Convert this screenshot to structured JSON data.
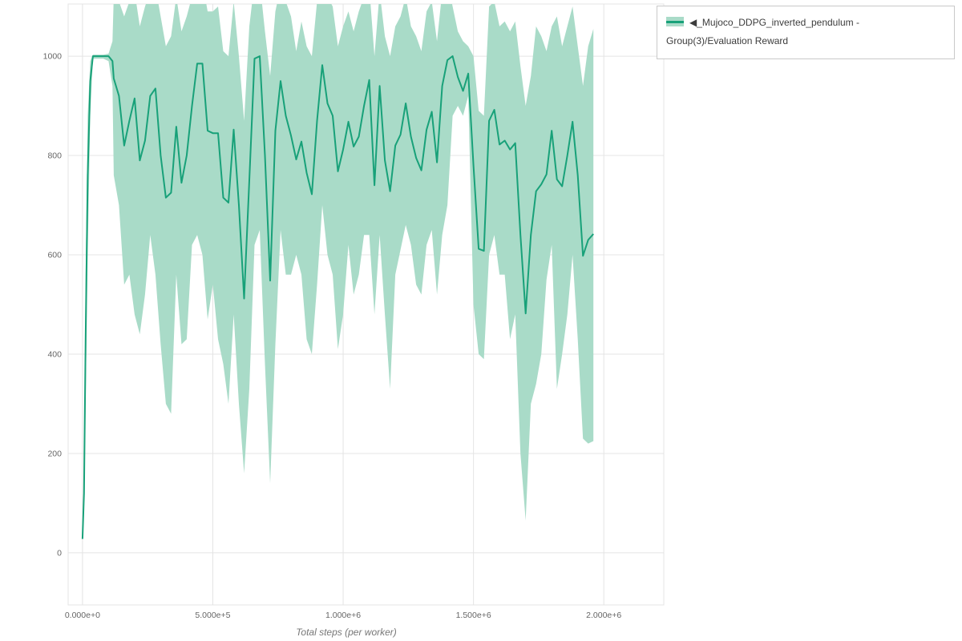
{
  "legend": {
    "collapse_icon": "◀",
    "label": "_Mujoco_DDPG_inverted_pendulum - Group(3)/Evaluation Reward"
  },
  "axes": {
    "x_title": "Total steps (per worker)"
  },
  "colors": {
    "line": "#18a179",
    "band": "#a9dbc8",
    "grid": "#e4e4e4",
    "tick_text": "#666666",
    "axis_title": "#777777",
    "legend_border": "#c9c9c9",
    "background": "#ffffff"
  },
  "chart_data": {
    "type": "line",
    "title": "",
    "xlabel": "Total steps (per worker)",
    "ylabel": "",
    "grid": true,
    "legend_position": "top-right",
    "xlim": [
      -55000,
      2230000
    ],
    "ylim": [
      -105,
      1105
    ],
    "x_tick_values": [
      0,
      500000,
      1000000,
      1500000,
      2000000
    ],
    "x_tick_labels": [
      "0.000e+0",
      "5.000e+5",
      "1.000e+6",
      "1.500e+6",
      "2.000e+6"
    ],
    "y_tick_values": [
      0,
      200,
      400,
      600,
      800,
      1000
    ],
    "y_tick_labels": [
      "0",
      "200",
      "400",
      "600",
      "800",
      "1000"
    ],
    "series": [
      {
        "name": "◀_Mujoco_DDPG_inverted_pendulum - Group(3)/Evaluation Reward",
        "x": [
          0,
          6000,
          12000,
          20000,
          30000,
          40000,
          60000,
          80000,
          100000,
          115000,
          120000,
          140000,
          160000,
          180000,
          200000,
          220000,
          240000,
          260000,
          280000,
          300000,
          320000,
          340000,
          360000,
          380000,
          400000,
          420000,
          440000,
          460000,
          480000,
          500000,
          520000,
          540000,
          560000,
          580000,
          600000,
          620000,
          640000,
          660000,
          680000,
          700000,
          720000,
          740000,
          760000,
          780000,
          800000,
          820000,
          840000,
          860000,
          880000,
          900000,
          920000,
          940000,
          960000,
          980000,
          1000000,
          1020000,
          1040000,
          1060000,
          1080000,
          1100000,
          1120000,
          1140000,
          1160000,
          1180000,
          1200000,
          1220000,
          1240000,
          1260000,
          1280000,
          1300000,
          1320000,
          1340000,
          1360000,
          1380000,
          1400000,
          1420000,
          1440000,
          1460000,
          1480000,
          1500000,
          1520000,
          1540000,
          1560000,
          1580000,
          1600000,
          1620000,
          1640000,
          1660000,
          1680000,
          1700000,
          1720000,
          1740000,
          1760000,
          1780000,
          1800000,
          1820000,
          1840000,
          1860000,
          1880000,
          1900000,
          1920000,
          1940000,
          1960000
        ],
        "mean": [
          28,
          120,
          430,
          760,
          950,
          1000,
          1000,
          1000,
          1000,
          990,
          955,
          920,
          820,
          870,
          915,
          790,
          830,
          920,
          935,
          800,
          715,
          725,
          858,
          745,
          800,
          900,
          985,
          985,
          850,
          845,
          845,
          715,
          705,
          852,
          700,
          512,
          750,
          995,
          1000,
          800,
          548,
          850,
          950,
          880,
          840,
          792,
          828,
          765,
          722,
          870,
          982,
          905,
          880,
          768,
          812,
          868,
          818,
          838,
          900,
          952,
          740,
          940,
          790,
          728,
          820,
          842,
          905,
          838,
          795,
          770,
          852,
          888,
          786,
          940,
          992,
          1000,
          958,
          930,
          965,
          780,
          612,
          608,
          870,
          892,
          822,
          830,
          812,
          825,
          640,
          482,
          640,
          728,
          742,
          762,
          850,
          752,
          738,
          800,
          868,
          760,
          598,
          630,
          642
        ],
        "lower": [
          25,
          80,
          300,
          600,
          880,
          995,
          995,
          995,
          990,
          940,
          760,
          700,
          540,
          560,
          480,
          440,
          520,
          640,
          560,
          420,
          300,
          280,
          560,
          420,
          430,
          620,
          640,
          600,
          470,
          540,
          430,
          380,
          300,
          480,
          300,
          160,
          330,
          620,
          650,
          380,
          140,
          420,
          650,
          560,
          560,
          600,
          560,
          430,
          400,
          540,
          700,
          600,
          560,
          410,
          480,
          620,
          520,
          560,
          640,
          640,
          480,
          640,
          480,
          330,
          560,
          610,
          660,
          620,
          540,
          520,
          620,
          650,
          520,
          640,
          700,
          880,
          900,
          880,
          920,
          500,
          400,
          390,
          600,
          640,
          560,
          560,
          430,
          480,
          200,
          65,
          300,
          340,
          400,
          550,
          620,
          330,
          400,
          480,
          600,
          430,
          230,
          220,
          225
        ],
        "upper": [
          32,
          160,
          560,
          880,
          990,
          1003,
          1003,
          1003,
          1005,
          1030,
          1120,
          1110,
          1080,
          1110,
          1130,
          1060,
          1100,
          1130,
          1140,
          1080,
          1020,
          1040,
          1120,
          1050,
          1080,
          1120,
          1150,
          1150,
          1090,
          1090,
          1100,
          1010,
          1000,
          1110,
          1000,
          870,
          1060,
          1150,
          1150,
          1050,
          960,
          1090,
          1140,
          1110,
          1080,
          1010,
          1070,
          1020,
          1000,
          1110,
          1150,
          1120,
          1100,
          1020,
          1060,
          1090,
          1050,
          1090,
          1120,
          1140,
          1000,
          1130,
          1040,
          1000,
          1060,
          1080,
          1120,
          1060,
          1040,
          1010,
          1090,
          1110,
          1030,
          1130,
          1150,
          1100,
          1050,
          1030,
          1020,
          1000,
          890,
          880,
          1100,
          1110,
          1060,
          1070,
          1050,
          1070,
          980,
          900,
          960,
          1060,
          1040,
          1010,
          1060,
          1080,
          1020,
          1060,
          1100,
          1020,
          940,
          1020,
          1055
        ]
      }
    ]
  }
}
